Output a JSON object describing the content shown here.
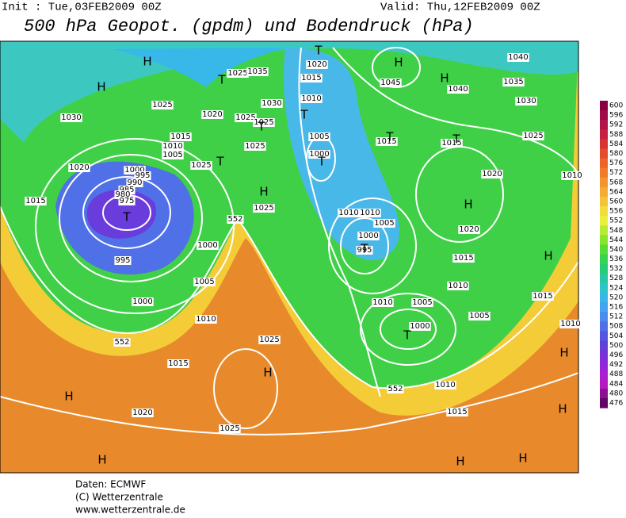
{
  "header": {
    "init": "Init : Tue,03FEB2009 00Z",
    "valid": "Valid: Thu,12FEB2009 00Z",
    "title": "500 hPa Geopot. (gpdm) und Bodendruck (hPa)"
  },
  "colorbar": {
    "labels": [
      600,
      596,
      592,
      588,
      584,
      580,
      576,
      572,
      568,
      564,
      560,
      556,
      552,
      548,
      544,
      540,
      536,
      532,
      528,
      524,
      520,
      516,
      512,
      508,
      504,
      500,
      496,
      492,
      488,
      484,
      480,
      476
    ],
    "colors": [
      "#8c0040",
      "#a00a48",
      "#b41448",
      "#c82040",
      "#d83434",
      "#e44c2c",
      "#ec6428",
      "#f07c28",
      "#f49430",
      "#f4ac34",
      "#f4c438",
      "#f4dc3c",
      "#e8f03c",
      "#b8ec34",
      "#88e42c",
      "#58dc34",
      "#38d450",
      "#28cc78",
      "#28c8a0",
      "#30c4c8",
      "#38b8e8",
      "#44a4f0",
      "#4c8cf0",
      "#5070e8",
      "#5458e0",
      "#6040d8",
      "#7830d8",
      "#9028d8",
      "#a820d0",
      "#b818c0",
      "#8c1090",
      "#600868"
    ]
  },
  "isobar_labels": [
    "1030",
    "1025",
    "1020",
    "1025",
    "1035",
    "1030",
    "1025",
    "1025",
    "1025",
    "1015",
    "1010",
    "1005",
    "1025",
    "1020",
    "1015",
    "1000",
    "995",
    "990",
    "985",
    "980",
    "975",
    "995",
    "1000",
    "1005",
    "1000",
    "1010",
    "1015",
    "1020",
    "1025",
    "1025",
    "1025",
    "1020",
    "1015",
    "1010",
    "1005",
    "1000",
    "1045",
    "1040",
    "1040",
    "1035",
    "1030",
    "1025",
    "1015",
    "1015",
    "1020",
    "1020",
    "1015",
    "1010",
    "1010",
    "1010",
    "1005",
    "1000",
    "995",
    "1010",
    "1005",
    "1000",
    "1005",
    "1010",
    "1015",
    "1015",
    "1010",
    "1010",
    "552",
    "552",
    "552"
  ],
  "pressure_centers": [
    "H",
    "H",
    "T",
    "T",
    "T",
    "H",
    "T",
    "T",
    "T",
    "T",
    "H",
    "H",
    "T",
    "T",
    "H",
    "T",
    "T",
    "H",
    "H",
    "H",
    "H",
    "H",
    "H",
    "H",
    "H"
  ],
  "footer": [
    "Daten: ECMWF",
    "(C) Wetterzentrale",
    "www.wetterzentrale.de"
  ]
}
